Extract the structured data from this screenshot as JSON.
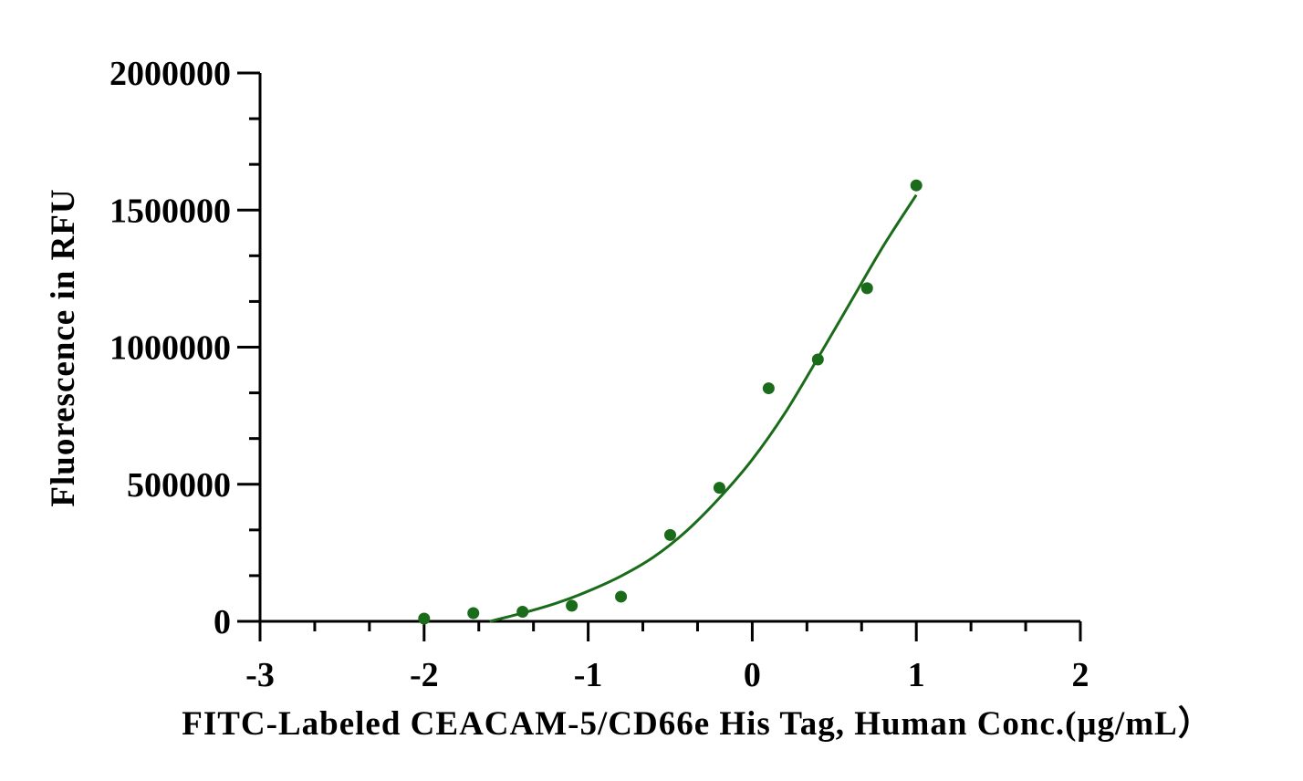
{
  "chart_data": {
    "type": "scatter",
    "title": "",
    "xlabel": "FITC-Labeled CEACAM-5/CD66e His Tag, Human Conc.(μg/mL）",
    "ylabel": "Fluorescence in RFU",
    "xlim": [
      -3,
      2
    ],
    "ylim": [
      0,
      2000000
    ],
    "x_ticks": [
      -3,
      -2,
      -1,
      0,
      1,
      2
    ],
    "x_tick_labels": [
      "-3",
      "-2",
      "-1",
      "0",
      "1",
      "2"
    ],
    "y_ticks": [
      0,
      500000,
      1000000,
      1500000,
      2000000
    ],
    "y_tick_labels": [
      "0",
      "500000",
      "1000000",
      "1500000",
      "2000000"
    ],
    "x_minor_step": 0.333333,
    "y_minor_step": 166666.67,
    "grid": false,
    "legend": "none",
    "color": "#1a6b1a",
    "series": [
      {
        "points": [
          {
            "x": -2.0,
            "y": 10000
          },
          {
            "x": -1.7,
            "y": 30000
          },
          {
            "x": -1.4,
            "y": 35000
          },
          {
            "x": -1.1,
            "y": 57000
          },
          {
            "x": -0.8,
            "y": 90000
          },
          {
            "x": -0.5,
            "y": 315000
          },
          {
            "x": -0.2,
            "y": 487000
          },
          {
            "x": 0.1,
            "y": 850000
          },
          {
            "x": 0.4,
            "y": 955000
          },
          {
            "x": 0.7,
            "y": 1215000
          },
          {
            "x": 1.0,
            "y": 1590000
          }
        ],
        "fit_curve": [
          {
            "x": -1.6,
            "y": 0
          },
          {
            "x": -1.4,
            "y": 30000
          },
          {
            "x": -1.2,
            "y": 65000
          },
          {
            "x": -1.0,
            "y": 110000
          },
          {
            "x": -0.8,
            "y": 165000
          },
          {
            "x": -0.6,
            "y": 235000
          },
          {
            "x": -0.4,
            "y": 330000
          },
          {
            "x": -0.2,
            "y": 450000
          },
          {
            "x": 0.0,
            "y": 590000
          },
          {
            "x": 0.2,
            "y": 760000
          },
          {
            "x": 0.4,
            "y": 960000
          },
          {
            "x": 0.6,
            "y": 1165000
          },
          {
            "x": 0.8,
            "y": 1370000
          },
          {
            "x": 1.0,
            "y": 1555000
          }
        ]
      }
    ]
  }
}
